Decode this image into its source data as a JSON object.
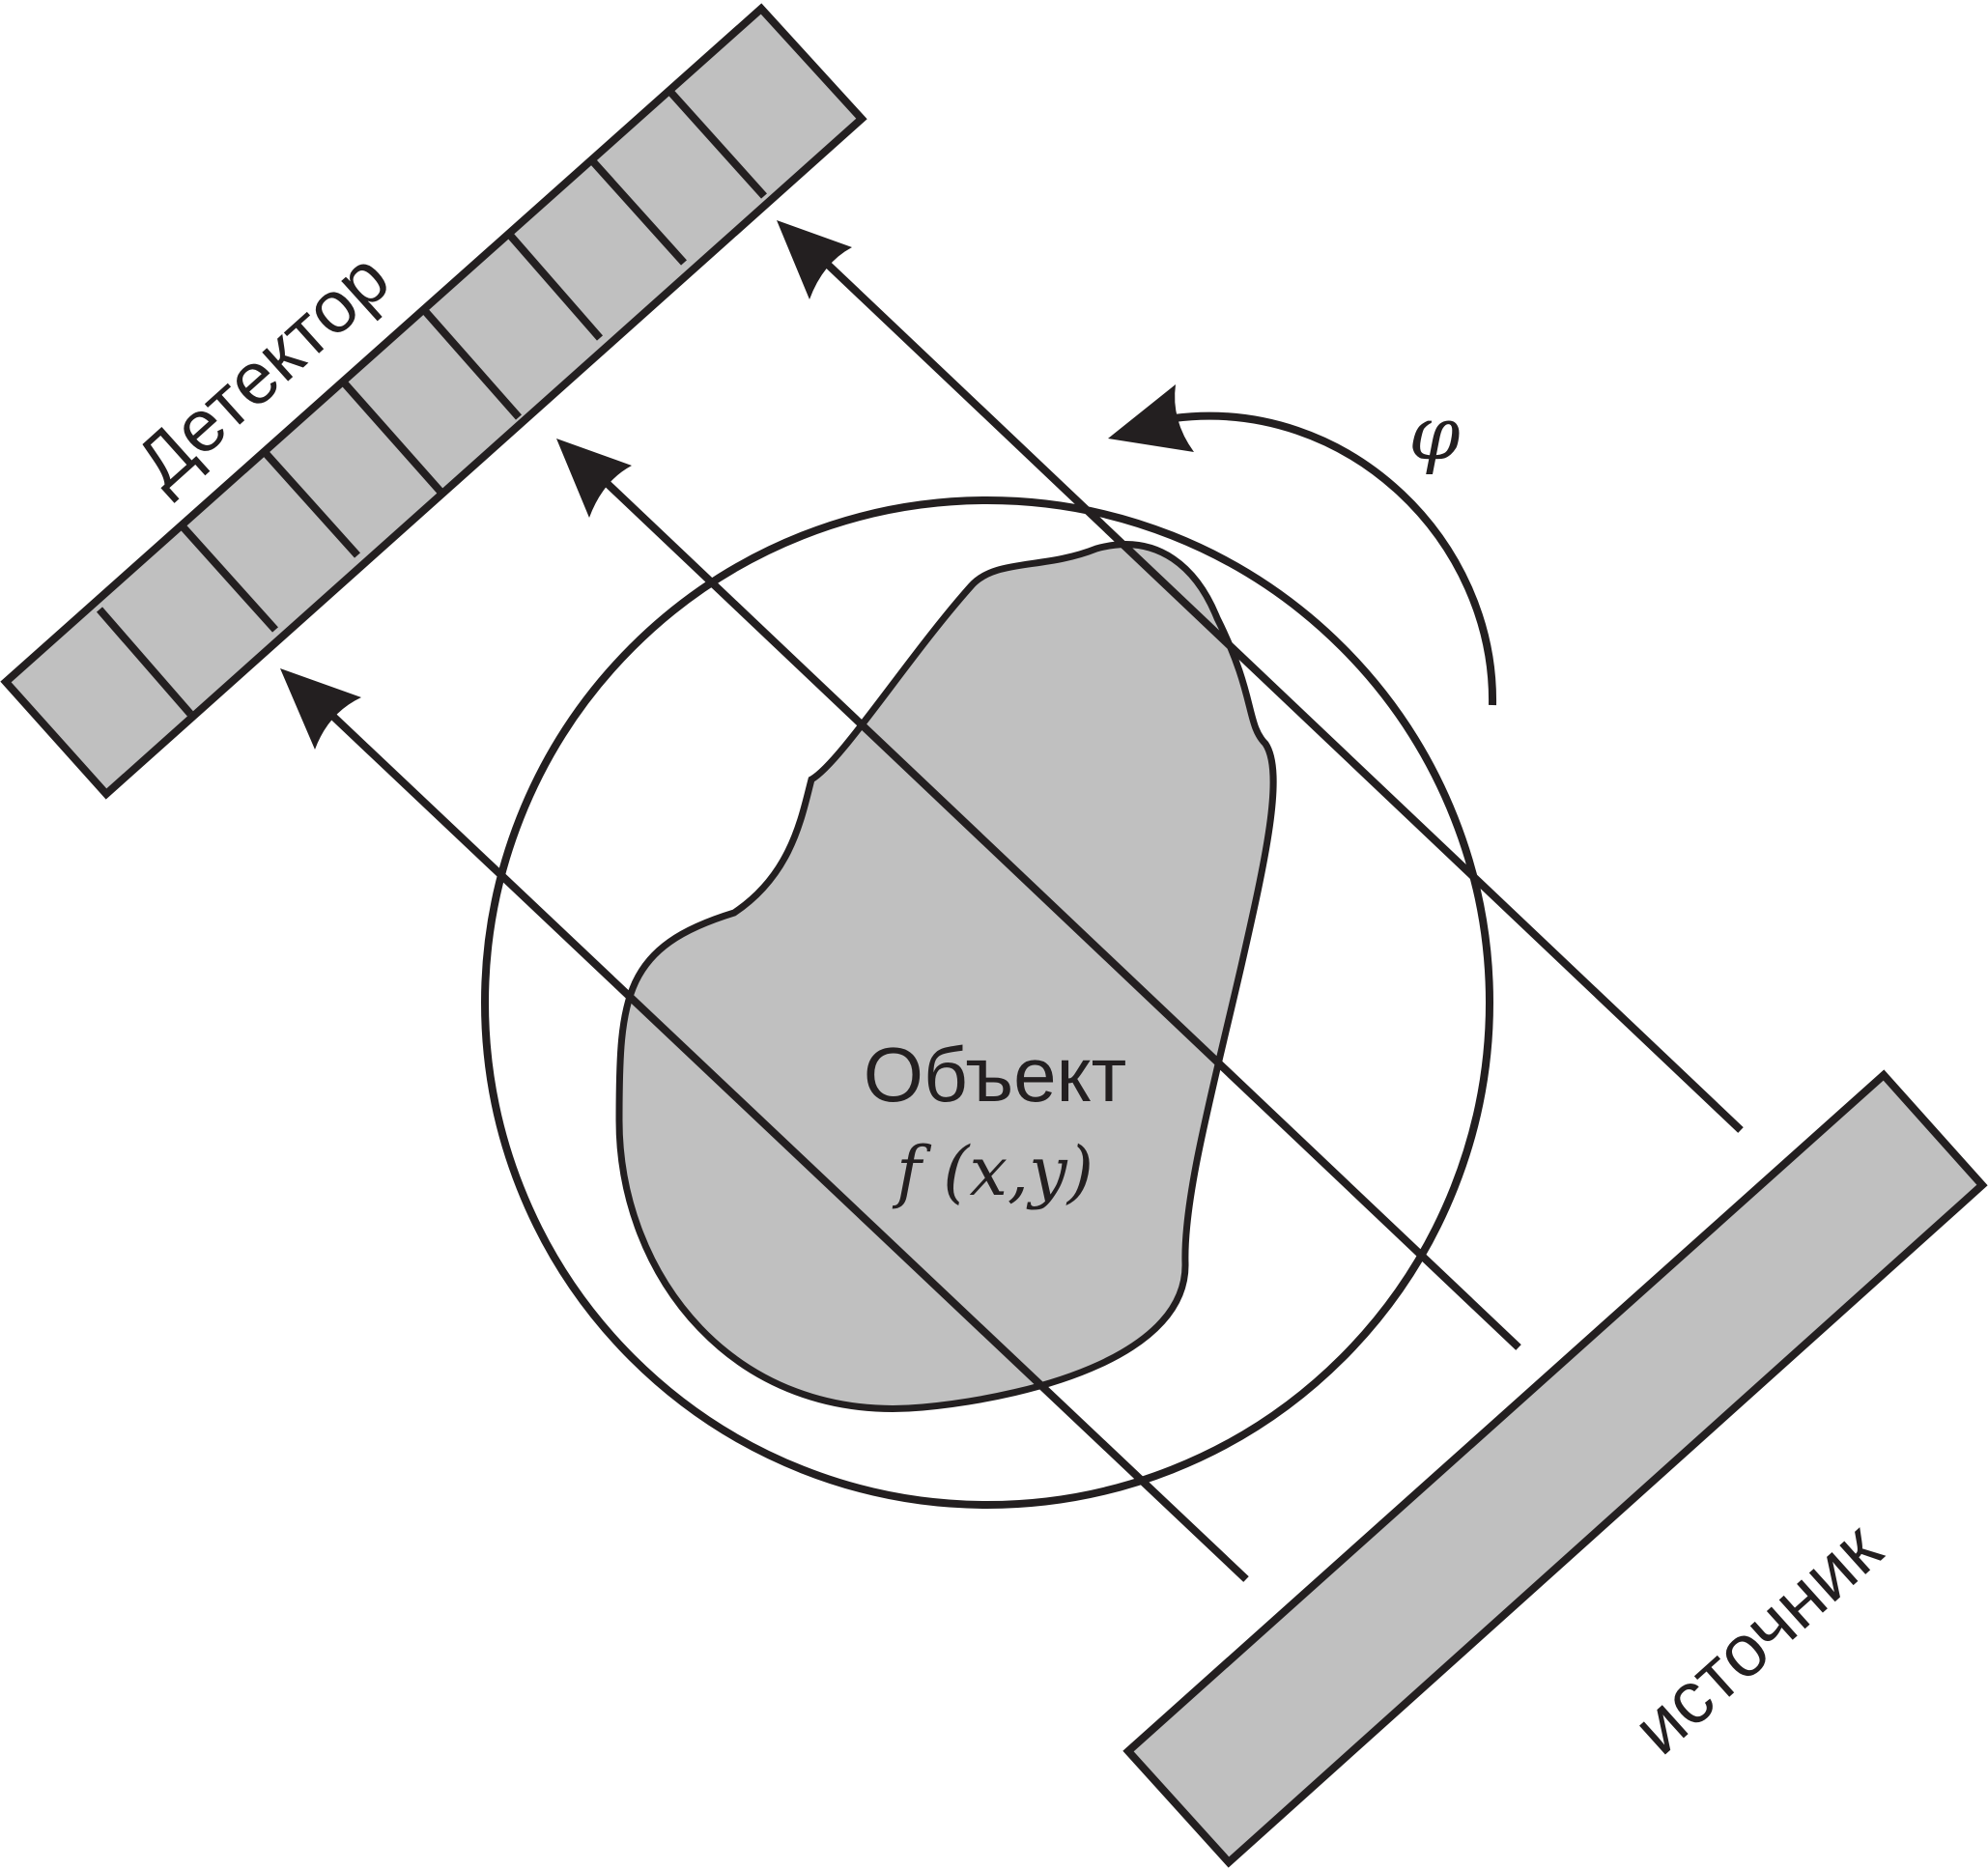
{
  "labels": {
    "detector": "Детектор",
    "source": "источник",
    "object": "Объект",
    "function": "f (x,y)",
    "angle": "φ"
  },
  "colors": {
    "ink": "#231f20",
    "fill_gray": "#c0c0c0",
    "background": "#ffffff"
  }
}
